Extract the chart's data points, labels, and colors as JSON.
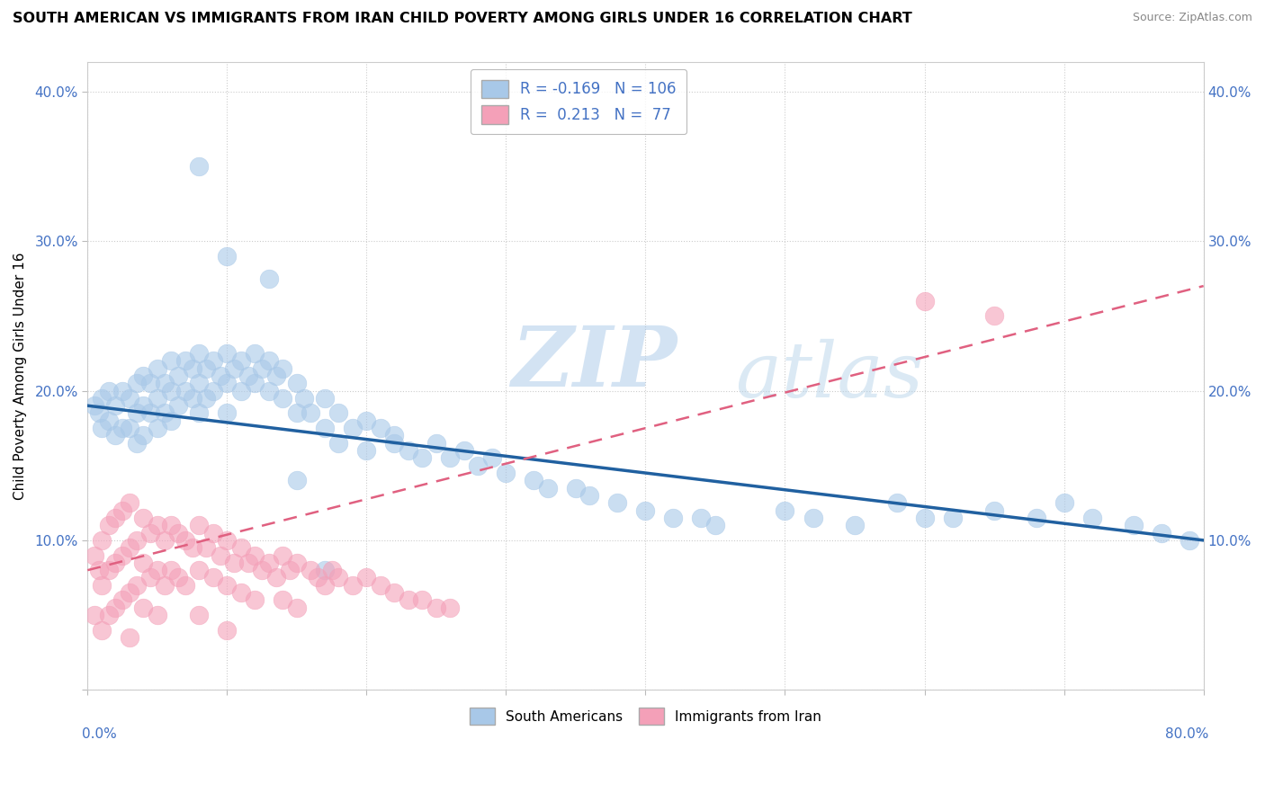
{
  "title": "SOUTH AMERICAN VS IMMIGRANTS FROM IRAN CHILD POVERTY AMONG GIRLS UNDER 16 CORRELATION CHART",
  "source": "Source: ZipAtlas.com",
  "ylabel": "Child Poverty Among Girls Under 16",
  "xlim": [
    0.0,
    0.8
  ],
  "ylim": [
    0.0,
    0.42
  ],
  "color_blue": "#a8c8e8",
  "color_pink": "#f4a0b8",
  "color_blue_line": "#2060a0",
  "color_pink_line": "#e06080",
  "watermark_zip": "ZIP",
  "watermark_atlas": "atlas",
  "blue_line_start_y": 0.19,
  "blue_line_end_y": 0.1,
  "pink_line_start_y": 0.08,
  "pink_line_end_y": 0.27,
  "sa_x": [
    0.005,
    0.008,
    0.01,
    0.01,
    0.015,
    0.015,
    0.02,
    0.02,
    0.025,
    0.025,
    0.03,
    0.03,
    0.035,
    0.035,
    0.035,
    0.04,
    0.04,
    0.04,
    0.045,
    0.045,
    0.05,
    0.05,
    0.05,
    0.055,
    0.055,
    0.06,
    0.06,
    0.06,
    0.065,
    0.065,
    0.07,
    0.07,
    0.075,
    0.075,
    0.08,
    0.08,
    0.08,
    0.085,
    0.085,
    0.09,
    0.09,
    0.095,
    0.1,
    0.1,
    0.1,
    0.105,
    0.11,
    0.11,
    0.115,
    0.12,
    0.12,
    0.125,
    0.13,
    0.13,
    0.135,
    0.14,
    0.14,
    0.15,
    0.15,
    0.155,
    0.16,
    0.17,
    0.17,
    0.18,
    0.18,
    0.19,
    0.2,
    0.2,
    0.21,
    0.22,
    0.23,
    0.24,
    0.25,
    0.26,
    0.27,
    0.28,
    0.29,
    0.3,
    0.32,
    0.33,
    0.35,
    0.36,
    0.38,
    0.4,
    0.42,
    0.44,
    0.45,
    0.5,
    0.52,
    0.55,
    0.58,
    0.6,
    0.62,
    0.65,
    0.68,
    0.7,
    0.72,
    0.75,
    0.77,
    0.79,
    0.08,
    0.1,
    0.13,
    0.15,
    0.17,
    0.22
  ],
  "sa_y": [
    0.19,
    0.185,
    0.195,
    0.175,
    0.2,
    0.18,
    0.19,
    0.17,
    0.2,
    0.175,
    0.195,
    0.175,
    0.205,
    0.185,
    0.165,
    0.21,
    0.19,
    0.17,
    0.205,
    0.185,
    0.215,
    0.195,
    0.175,
    0.205,
    0.185,
    0.22,
    0.2,
    0.18,
    0.21,
    0.19,
    0.22,
    0.2,
    0.215,
    0.195,
    0.225,
    0.205,
    0.185,
    0.215,
    0.195,
    0.22,
    0.2,
    0.21,
    0.225,
    0.205,
    0.185,
    0.215,
    0.22,
    0.2,
    0.21,
    0.225,
    0.205,
    0.215,
    0.22,
    0.2,
    0.21,
    0.215,
    0.195,
    0.205,
    0.185,
    0.195,
    0.185,
    0.195,
    0.175,
    0.185,
    0.165,
    0.175,
    0.18,
    0.16,
    0.175,
    0.165,
    0.16,
    0.155,
    0.165,
    0.155,
    0.16,
    0.15,
    0.155,
    0.145,
    0.14,
    0.135,
    0.135,
    0.13,
    0.125,
    0.12,
    0.115,
    0.115,
    0.11,
    0.12,
    0.115,
    0.11,
    0.125,
    0.115,
    0.115,
    0.12,
    0.115,
    0.125,
    0.115,
    0.11,
    0.105,
    0.1,
    0.35,
    0.29,
    0.275,
    0.14,
    0.08,
    0.17
  ],
  "ir_x": [
    0.005,
    0.005,
    0.008,
    0.01,
    0.01,
    0.01,
    0.015,
    0.015,
    0.015,
    0.02,
    0.02,
    0.02,
    0.025,
    0.025,
    0.025,
    0.03,
    0.03,
    0.03,
    0.03,
    0.035,
    0.035,
    0.04,
    0.04,
    0.04,
    0.045,
    0.045,
    0.05,
    0.05,
    0.05,
    0.055,
    0.055,
    0.06,
    0.06,
    0.065,
    0.065,
    0.07,
    0.07,
    0.075,
    0.08,
    0.08,
    0.08,
    0.085,
    0.09,
    0.09,
    0.095,
    0.1,
    0.1,
    0.1,
    0.105,
    0.11,
    0.11,
    0.115,
    0.12,
    0.12,
    0.125,
    0.13,
    0.135,
    0.14,
    0.14,
    0.145,
    0.15,
    0.15,
    0.16,
    0.165,
    0.17,
    0.175,
    0.18,
    0.19,
    0.2,
    0.21,
    0.22,
    0.23,
    0.24,
    0.25,
    0.26,
    0.6,
    0.65
  ],
  "ir_y": [
    0.09,
    0.05,
    0.08,
    0.1,
    0.07,
    0.04,
    0.11,
    0.08,
    0.05,
    0.115,
    0.085,
    0.055,
    0.12,
    0.09,
    0.06,
    0.125,
    0.095,
    0.065,
    0.035,
    0.1,
    0.07,
    0.115,
    0.085,
    0.055,
    0.105,
    0.075,
    0.11,
    0.08,
    0.05,
    0.1,
    0.07,
    0.11,
    0.08,
    0.105,
    0.075,
    0.1,
    0.07,
    0.095,
    0.11,
    0.08,
    0.05,
    0.095,
    0.105,
    0.075,
    0.09,
    0.1,
    0.07,
    0.04,
    0.085,
    0.095,
    0.065,
    0.085,
    0.09,
    0.06,
    0.08,
    0.085,
    0.075,
    0.09,
    0.06,
    0.08,
    0.085,
    0.055,
    0.08,
    0.075,
    0.07,
    0.08,
    0.075,
    0.07,
    0.075,
    0.07,
    0.065,
    0.06,
    0.06,
    0.055,
    0.055,
    0.26,
    0.25
  ]
}
